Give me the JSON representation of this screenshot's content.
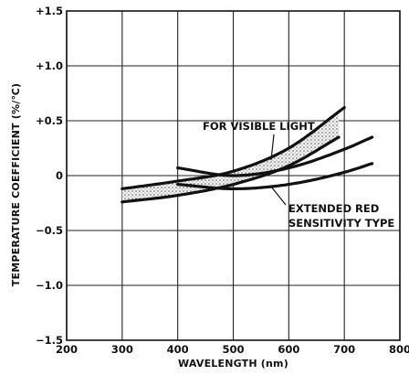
{
  "chart_data": {
    "type": "line",
    "title": "",
    "xlabel": "WAVELENGTH (nm)",
    "ylabel": "TEMPERATURE COEFFICIENT (%/℃)",
    "xlim": [
      200,
      800
    ],
    "ylim": [
      -1.5,
      1.5
    ],
    "x_ticks": [
      "200",
      "300",
      "400",
      "500",
      "600",
      "700",
      "800"
    ],
    "y_ticks": [
      "+1.5",
      "+1.0",
      "+0.5",
      "0",
      "−0.5",
      "−1.0",
      "−1.5"
    ],
    "grid": true,
    "annotations": [
      {
        "id": "visible",
        "lines": [
          "FOR VISIBLE LIGHT"
        ]
      },
      {
        "id": "extended",
        "lines": [
          "EXTENDED RED",
          "SENSITIVITY TYPE"
        ]
      }
    ],
    "series": [
      {
        "key": "visible_upper",
        "color": "#111111",
        "x": [
          300,
          400,
          500,
          600,
          700
        ],
        "y": [
          -0.12,
          -0.05,
          0.04,
          0.25,
          0.62
        ]
      },
      {
        "key": "visible_lower",
        "color": "#111111",
        "x": [
          300,
          400,
          500,
          600,
          690
        ],
        "y": [
          -0.24,
          -0.18,
          -0.08,
          0.09,
          0.35
        ]
      },
      {
        "key": "extended_upper",
        "color": "#111111",
        "x": [
          400,
          500,
          600,
          700,
          750
        ],
        "y": [
          0.07,
          0.0,
          0.07,
          0.24,
          0.35
        ]
      },
      {
        "key": "extended_lower",
        "color": "#111111",
        "x": [
          400,
          500,
          600,
          700,
          750
        ],
        "y": [
          -0.08,
          -0.12,
          -0.08,
          0.03,
          0.11
        ]
      }
    ],
    "bands": [
      {
        "key": "visible_band",
        "between": [
          "visible_upper",
          "visible_lower"
        ],
        "x_range": [
          300,
          690
        ],
        "fill": "dotted"
      }
    ]
  }
}
